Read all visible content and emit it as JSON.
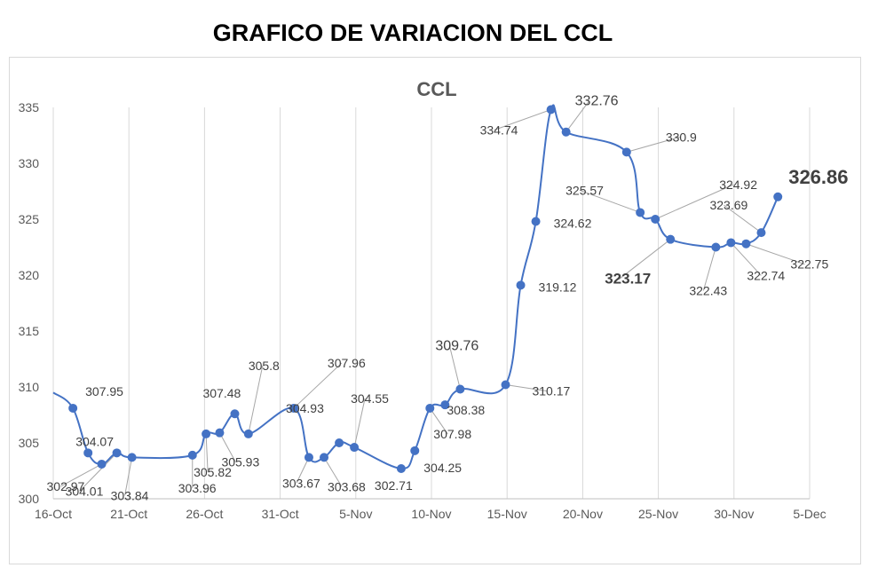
{
  "page_title": "GRAFICO DE VARIACION DEL CCL",
  "chart_data": {
    "type": "line",
    "title": "CCL",
    "xlabel": "",
    "ylabel": "",
    "ylim": [
      300,
      335
    ],
    "yticks": [
      300,
      305,
      310,
      315,
      320,
      325,
      330,
      335
    ],
    "xticks": [
      "16-Oct",
      "21-Oct",
      "26-Oct",
      "31-Oct",
      "5-Nov",
      "10-Nov",
      "15-Nov",
      "20-Nov",
      "25-Nov",
      "30-Nov",
      "5-Dec"
    ],
    "grid": "vertical",
    "line_color": "#4472c4",
    "series": [
      {
        "points": [
          {
            "x": 15.0,
            "y": 309.5
          },
          {
            "x": 16.3,
            "y": 308.1,
            "label": "307.95"
          },
          {
            "x": 17.3,
            "y": 304.1,
            "label": "304.07"
          },
          {
            "x": 18.2,
            "y": 303.1,
            "label": "302.97"
          },
          {
            "x": 19.2,
            "y": 304.1,
            "label": "304.01"
          },
          {
            "x": 20.2,
            "y": 303.7,
            "label": "303.84"
          },
          {
            "x": 24.2,
            "y": 303.9,
            "label": "303.96"
          },
          {
            "x": 25.1,
            "y": 305.8,
            "label": "305.82"
          },
          {
            "x": 26.0,
            "y": 305.9,
            "label": "305.93"
          },
          {
            "x": 27.0,
            "y": 307.6,
            "label": "307.48"
          },
          {
            "x": 27.9,
            "y": 305.8,
            "label": "305.8"
          },
          {
            "x": 30.9,
            "y": 308.1,
            "label": "307.96"
          },
          {
            "x": 31.9,
            "y": 303.7,
            "label": "303.67"
          },
          {
            "x": 32.9,
            "y": 303.7,
            "label": "303.68"
          },
          {
            "x": 33.9,
            "y": 305.0,
            "label": "304.93"
          },
          {
            "x": 34.9,
            "y": 304.6,
            "label": "304.55"
          },
          {
            "x": 38.0,
            "y": 302.7,
            "label": "302.71"
          },
          {
            "x": 38.9,
            "y": 304.3,
            "label": "304.25"
          },
          {
            "x": 39.9,
            "y": 308.1,
            "label": "307.98"
          },
          {
            "x": 40.9,
            "y": 308.4,
            "label": "308.38"
          },
          {
            "x": 41.9,
            "y": 309.8,
            "label": "309.76"
          },
          {
            "x": 44.9,
            "y": 310.2,
            "label": "310.17"
          },
          {
            "x": 45.9,
            "y": 319.1,
            "label": "319.12"
          },
          {
            "x": 46.9,
            "y": 324.8,
            "label": "324.62"
          },
          {
            "x": 47.9,
            "y": 334.8,
            "label": "334.74"
          },
          {
            "x": 48.9,
            "y": 332.8,
            "label": "332.76"
          },
          {
            "x": 52.9,
            "y": 331.0,
            "label": "330.9"
          },
          {
            "x": 53.8,
            "y": 325.6,
            "label": "325.57"
          },
          {
            "x": 54.8,
            "y": 325.0,
            "label": "324.92"
          },
          {
            "x": 55.8,
            "y": 323.2,
            "label": "323.17"
          },
          {
            "x": 58.8,
            "y": 322.5,
            "label": "322.43"
          },
          {
            "x": 59.8,
            "y": 322.9,
            "label": "322.74"
          },
          {
            "x": 60.8,
            "y": 322.8,
            "label": "322.75"
          },
          {
            "x": 61.8,
            "y": 323.8,
            "label": "323.69"
          },
          {
            "x": 62.9,
            "y": 327.0,
            "label": "326.86"
          }
        ]
      }
    ]
  }
}
